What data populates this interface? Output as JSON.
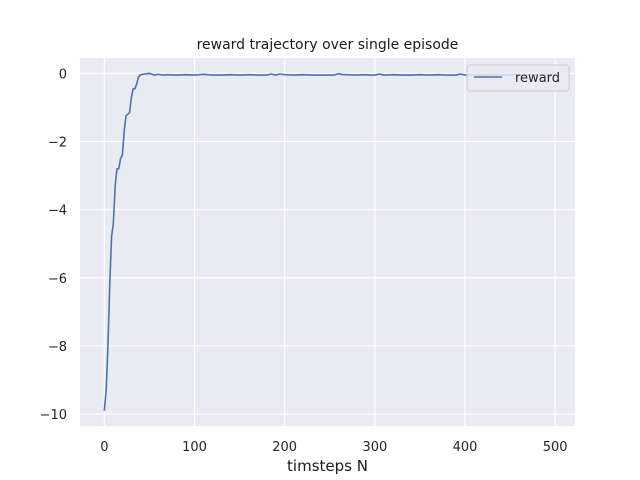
{
  "chart_data": {
    "type": "line",
    "title": "reward trajectory over single episode",
    "xlabel": "timsteps N",
    "ylabel": "",
    "xlim": [
      -27,
      522
    ],
    "ylim": [
      -10.35,
      0.45
    ],
    "xticks": [
      0,
      100,
      200,
      300,
      400,
      500
    ],
    "yticks": [
      0,
      -2,
      -4,
      -6,
      -8,
      -10
    ],
    "xtick_labels": [
      "0",
      "100",
      "200",
      "300",
      "400",
      "500"
    ],
    "ytick_labels": [
      "0",
      "−2",
      "−4",
      "−6",
      "−8",
      "−10"
    ],
    "grid": true,
    "legend_position": "top-right",
    "series": [
      {
        "name": "reward",
        "color": "#4c72b0",
        "x": [
          0,
          2,
          4,
          6,
          8,
          10,
          12,
          14,
          16,
          18,
          20,
          22,
          24,
          26,
          28,
          30,
          32,
          34,
          36,
          38,
          40,
          42,
          45,
          50,
          55,
          60,
          65,
          70,
          80,
          90,
          100,
          110,
          120,
          130,
          140,
          150,
          160,
          170,
          180,
          185,
          190,
          195,
          200,
          210,
          220,
          230,
          240,
          250,
          255,
          260,
          265,
          270,
          280,
          290,
          295,
          300,
          305,
          310,
          320,
          330,
          340,
          350,
          360,
          370,
          380,
          390,
          395,
          400,
          405,
          410,
          420,
          430,
          440,
          450,
          460,
          470,
          480,
          490,
          500
        ],
        "y": [
          -9.9,
          -9.3,
          -8.0,
          -6.2,
          -4.8,
          -4.4,
          -3.3,
          -2.8,
          -2.8,
          -2.5,
          -2.4,
          -1.7,
          -1.25,
          -1.2,
          -1.15,
          -0.7,
          -0.45,
          -0.45,
          -0.3,
          -0.1,
          -0.05,
          -0.03,
          -0.02,
          0.0,
          -0.05,
          -0.03,
          -0.05,
          -0.04,
          -0.05,
          -0.04,
          -0.05,
          -0.03,
          -0.05,
          -0.05,
          -0.04,
          -0.05,
          -0.04,
          -0.05,
          -0.05,
          -0.02,
          -0.05,
          -0.02,
          -0.04,
          -0.05,
          -0.04,
          -0.05,
          -0.05,
          -0.05,
          -0.05,
          -0.01,
          -0.04,
          -0.04,
          -0.05,
          -0.04,
          -0.05,
          -0.05,
          -0.02,
          -0.05,
          -0.04,
          -0.05,
          -0.05,
          -0.04,
          -0.05,
          -0.04,
          -0.05,
          -0.05,
          -0.02,
          -0.05,
          -0.04,
          -0.04,
          -0.05,
          -0.04,
          -0.05,
          -0.04,
          -0.05,
          -0.04,
          -0.05,
          -0.04,
          -0.05
        ]
      }
    ]
  }
}
